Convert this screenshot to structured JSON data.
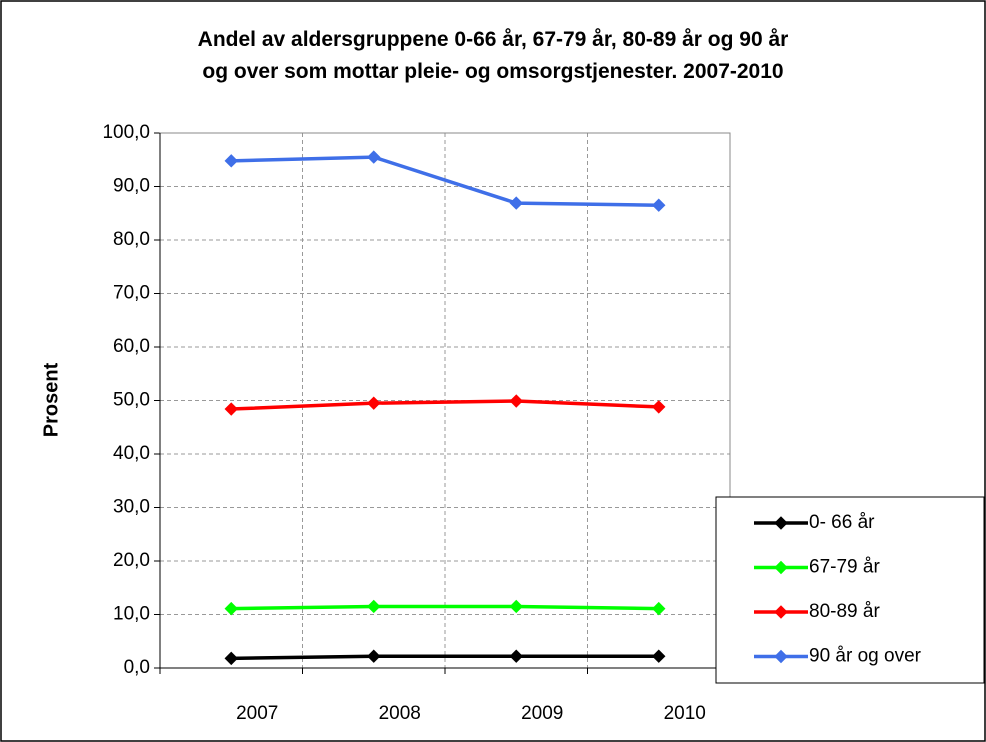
{
  "chart_data": {
    "type": "line",
    "title": "Andel av aldersgruppene 0-66 år, 67-79 år, 80-89 år og 90 år\nog over som mottar pleie- og omsorgstjenester. 2007-2010",
    "y_label": "Prosent",
    "categories": [
      "2007",
      "2008",
      "2009",
      "2010"
    ],
    "series": [
      {
        "name": "0- 66 år",
        "color": "#000000",
        "values": [
          1.8,
          2.2,
          2.2,
          2.2
        ]
      },
      {
        "name": "67-79 år",
        "color": "#00ff00",
        "values": [
          11.1,
          11.5,
          11.5,
          11.1
        ]
      },
      {
        "name": "80-89 år",
        "color": "#ff0000",
        "values": [
          48.4,
          49.5,
          49.9,
          48.8
        ]
      },
      {
        "name": "90 år og over",
        "color": "#3f6fe8",
        "values": [
          94.8,
          95.5,
          86.9,
          86.5
        ]
      }
    ],
    "ylim": [
      0,
      100
    ],
    "yticks": [
      {
        "value": 0,
        "label": "0,0"
      },
      {
        "value": 10,
        "label": "10,0"
      },
      {
        "value": 20,
        "label": "20,0"
      },
      {
        "value": 30,
        "label": "30,0"
      },
      {
        "value": 40,
        "label": "40,0"
      },
      {
        "value": 50,
        "label": "50,0"
      },
      {
        "value": 60,
        "label": "60,0"
      },
      {
        "value": 70,
        "label": "70,0"
      },
      {
        "value": 80,
        "label": "80,0"
      },
      {
        "value": 90,
        "label": "90,0"
      },
      {
        "value": 100,
        "label": "100,0"
      }
    ],
    "grid": true,
    "legend": "right"
  }
}
